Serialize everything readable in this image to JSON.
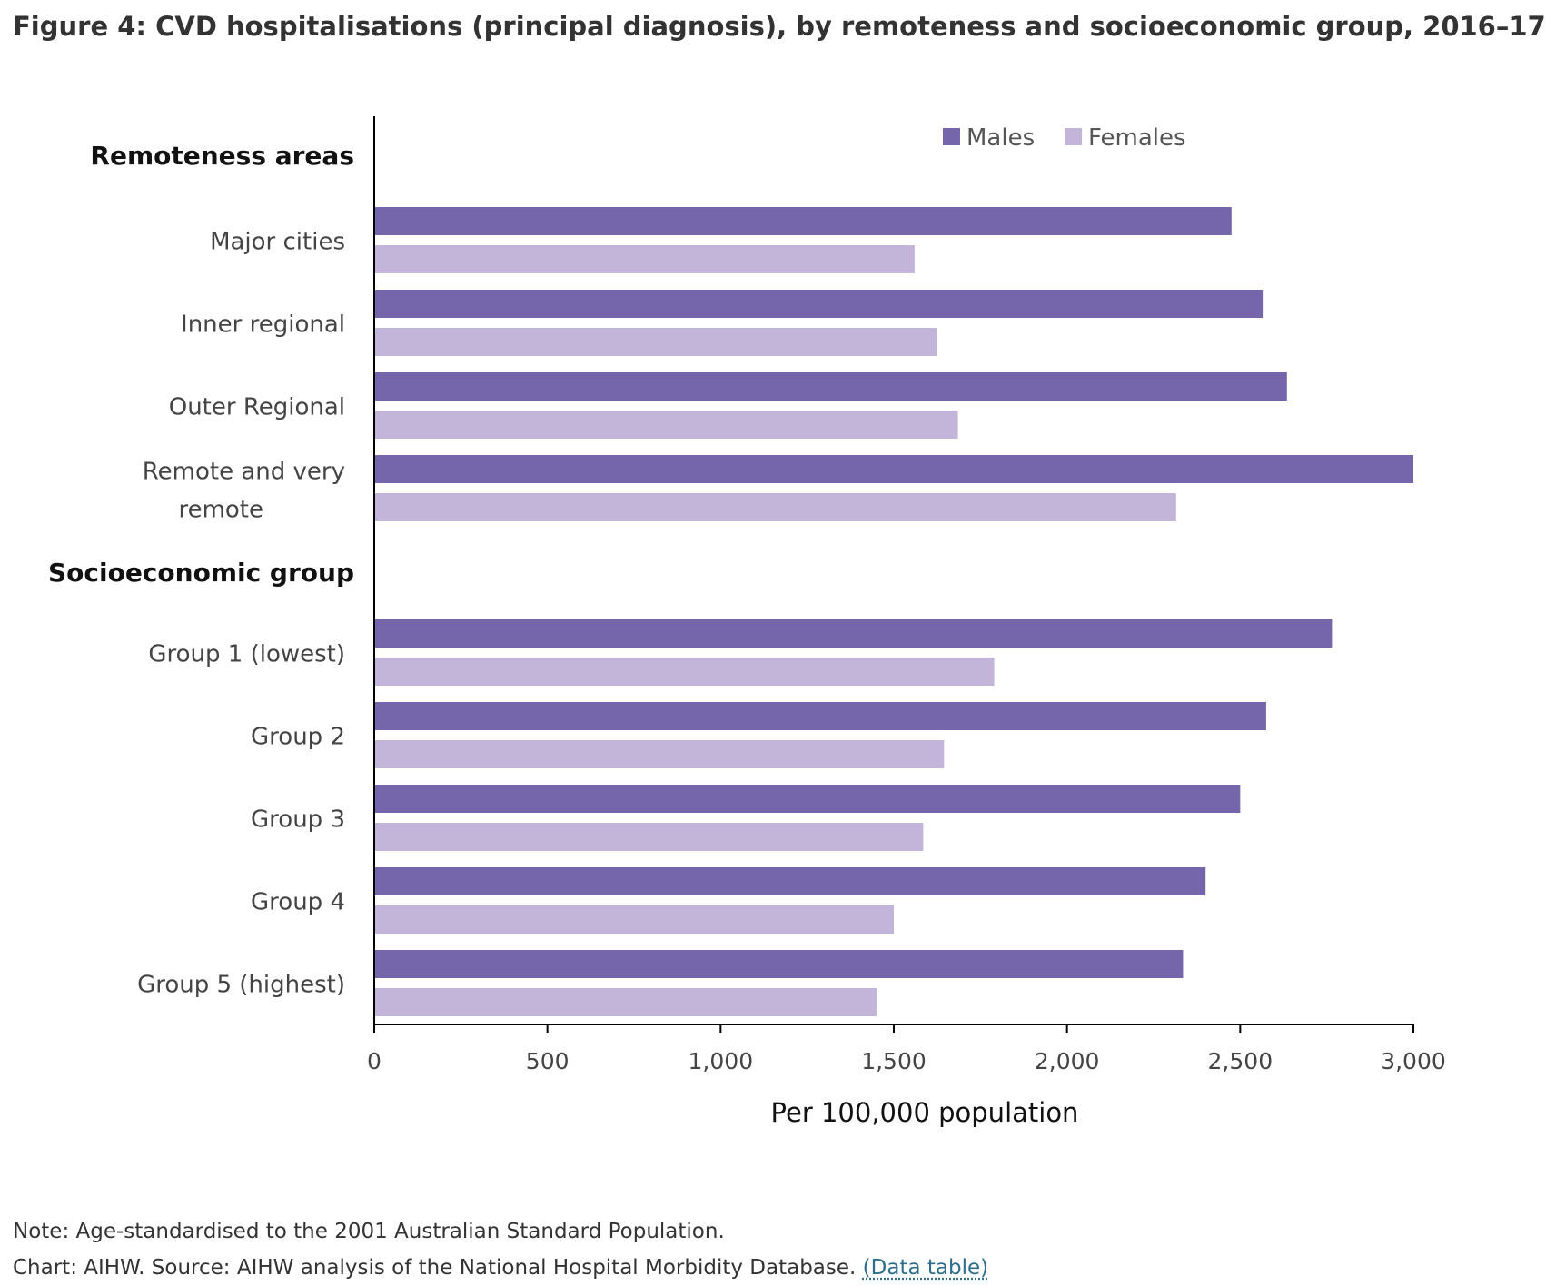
{
  "page": {
    "title": "Figure 4: CVD hospitalisations (principal diagnosis), by remoteness and socioeconomic group, 2016–17",
    "note": "Note: Age-standardised to the 2001 Australian Standard Population.",
    "source": "Chart: AIHW. Source: AIHW analysis of the National Hospital Morbidity Database.",
    "data_table_link": "(Data table)"
  },
  "chart_data": {
    "type": "bar",
    "orientation": "horizontal",
    "title": "",
    "xlabel": "Per 100,000 population",
    "ylabel": "",
    "xlim": [
      0,
      3000
    ],
    "xticks": [
      0,
      500,
      1000,
      1500,
      2000,
      2500,
      3000
    ],
    "xtick_labels": [
      "0",
      "500",
      "1,000",
      "1,500",
      "2,000",
      "2,500",
      "3,000"
    ],
    "grid": false,
    "legend_position": "top-right",
    "colors": {
      "Males": "#7565aa",
      "Females": "#c3b5da"
    },
    "groups": [
      {
        "heading": "Remoteness areas",
        "categories": [
          {
            "label": [
              "Major cities"
            ],
            "Males": 2475,
            "Females": 1560
          },
          {
            "label": [
              "Inner regional"
            ],
            "Males": 2565,
            "Females": 1625
          },
          {
            "label": [
              "Outer Regional"
            ],
            "Males": 2635,
            "Females": 1685
          },
          {
            "label": [
              "Remote and very",
              "remote"
            ],
            "Males": 3000,
            "Females": 2315
          }
        ]
      },
      {
        "heading": "Socioeconomic group",
        "categories": [
          {
            "label": [
              "Group 1 (lowest)"
            ],
            "Males": 2765,
            "Females": 1790
          },
          {
            "label": [
              "Group 2"
            ],
            "Males": 2575,
            "Females": 1645
          },
          {
            "label": [
              "Group 3"
            ],
            "Males": 2500,
            "Females": 1585
          },
          {
            "label": [
              "Group 4"
            ],
            "Males": 2400,
            "Females": 1500
          },
          {
            "label": [
              "Group 5 (highest)"
            ],
            "Males": 2335,
            "Females": 1450
          }
        ]
      }
    ],
    "series": [
      {
        "name": "Males"
      },
      {
        "name": "Females"
      }
    ]
  }
}
